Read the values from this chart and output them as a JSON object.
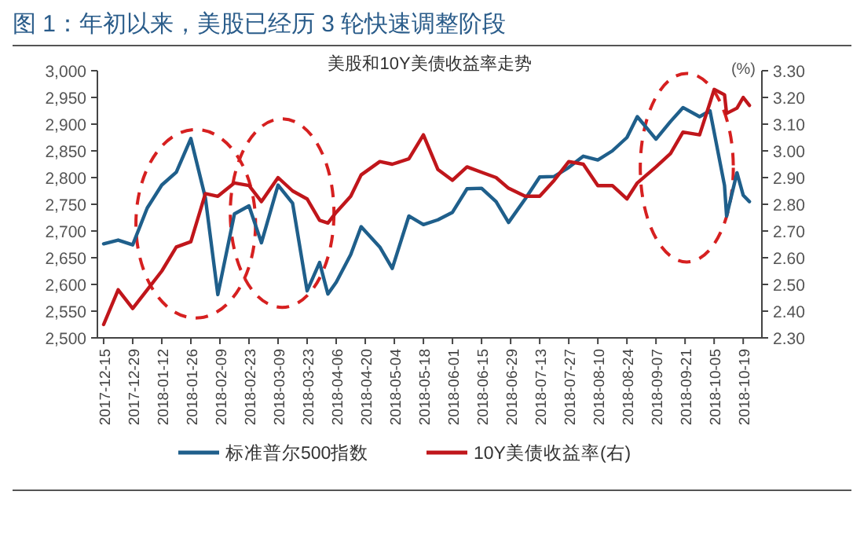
{
  "chart_data": {
    "type": "line",
    "title": "图 1：年初以来，美股已经历 3 轮快速调整阶段",
    "subtitle": "美股和10Y美债收益率走势",
    "y2label": "(%)",
    "x": [
      "2017-12-15",
      "2017-12-22",
      "2017-12-29",
      "2018-01-05",
      "2018-01-12",
      "2018-01-19",
      "2018-01-26",
      "2018-02-02",
      "2018-02-08",
      "2018-02-16",
      "2018-02-23",
      "2018-03-01",
      "2018-03-09",
      "2018-03-16",
      "2018-03-23",
      "2018-03-29",
      "2018-04-02",
      "2018-04-06",
      "2018-04-13",
      "2018-04-18",
      "2018-04-27",
      "2018-05-03",
      "2018-05-11",
      "2018-05-18",
      "2018-05-25",
      "2018-06-01",
      "2018-06-08",
      "2018-06-15",
      "2018-06-22",
      "2018-06-28",
      "2018-07-06",
      "2018-07-13",
      "2018-07-20",
      "2018-07-27",
      "2018-08-03",
      "2018-08-10",
      "2018-08-17",
      "2018-08-24",
      "2018-08-29",
      "2018-09-07",
      "2018-09-14",
      "2018-09-20",
      "2018-09-28",
      "2018-10-03",
      "2018-10-05",
      "2018-10-10",
      "2018-10-11",
      "2018-10-16",
      "2018-10-19",
      "2018-10-22"
    ],
    "series": [
      {
        "name": "标准普尔500指数",
        "color": "#1f5f8b",
        "values": [
          2676,
          2683,
          2674,
          2743,
          2786,
          2810,
          2873,
          2762,
          2581,
          2732,
          2747,
          2678,
          2786,
          2752,
          2588,
          2641,
          2582,
          2604,
          2656,
          2708,
          2670,
          2630,
          2728,
          2712,
          2721,
          2735,
          2779,
          2780,
          2755,
          2716,
          2760,
          2801,
          2802,
          2819,
          2840,
          2833,
          2850,
          2875,
          2914,
          2872,
          2905,
          2931,
          2914,
          2925,
          2885,
          2785,
          2728,
          2809,
          2767,
          2755
        ]
      },
      {
        "name": "10Y美债收益率(右)",
        "color": "#c0161b",
        "axis": "y2",
        "values": [
          2.35,
          2.48,
          2.41,
          2.48,
          2.55,
          2.64,
          2.66,
          2.84,
          2.83,
          2.88,
          2.87,
          2.81,
          2.9,
          2.85,
          2.82,
          2.74,
          2.73,
          2.77,
          2.83,
          2.91,
          2.96,
          2.95,
          2.97,
          3.06,
          2.93,
          2.89,
          2.94,
          2.92,
          2.9,
          2.86,
          2.83,
          2.83,
          2.89,
          2.96,
          2.95,
          2.87,
          2.87,
          2.82,
          2.88,
          2.94,
          2.99,
          3.07,
          3.06,
          3.18,
          3.23,
          3.21,
          3.14,
          3.16,
          3.2,
          3.17
        ]
      }
    ],
    "xlim": [
      "2017-12-12",
      "2018-10-28"
    ],
    "xticks": [
      {
        "value": "2017-12-15",
        "label": "2017-12-15"
      },
      {
        "value": "2017-12-29",
        "label": "2017-12-29"
      },
      {
        "value": "2018-01-12",
        "label": "2018-01-12"
      },
      {
        "value": "2018-01-26",
        "label": "2018-01-26"
      },
      {
        "value": "2018-02-09",
        "label": "2018-02-09"
      },
      {
        "value": "2018-02-23",
        "label": "2018-02-23"
      },
      {
        "value": "2018-03-09",
        "label": "2018-03-09"
      },
      {
        "value": "2018-03-23",
        "label": "2018-03-23"
      },
      {
        "value": "2018-04-06",
        "label": "2018-04-06"
      },
      {
        "value": "2018-04-20",
        "label": "2018-04-20"
      },
      {
        "value": "2018-05-04",
        "label": "2018-05-04"
      },
      {
        "value": "2018-05-18",
        "label": "2018-05-18"
      },
      {
        "value": "2018-06-01",
        "label": "2018-06-01"
      },
      {
        "value": "2018-06-15",
        "label": "2018-06-15"
      },
      {
        "value": "2018-06-29",
        "label": "2018-06-29"
      },
      {
        "value": "2018-07-13",
        "label": "2018-07-13"
      },
      {
        "value": "2018-07-27",
        "label": "2018-07-27"
      },
      {
        "value": "2018-08-10",
        "label": "2018-08-10"
      },
      {
        "value": "2018-08-24",
        "label": "2018-08-24"
      },
      {
        "value": "2018-09-07",
        "label": "2018-09-07"
      },
      {
        "value": "2018-09-21",
        "label": "2018-09-21"
      },
      {
        "value": "2018-10-05",
        "label": "2018-10-05"
      },
      {
        "value": "2018-10-19",
        "label": "2018-10-19"
      }
    ],
    "ylim": [
      2500,
      3000
    ],
    "yticks": [
      {
        "value": 2500,
        "label": "2,500"
      },
      {
        "value": 2550,
        "label": "2,550"
      },
      {
        "value": 2600,
        "label": "2,600"
      },
      {
        "value": 2650,
        "label": "2,650"
      },
      {
        "value": 2700,
        "label": "2,700"
      },
      {
        "value": 2750,
        "label": "2,750"
      },
      {
        "value": 2800,
        "label": "2,800"
      },
      {
        "value": 2850,
        "label": "2,850"
      },
      {
        "value": 2900,
        "label": "2,900"
      },
      {
        "value": 2950,
        "label": "2,950"
      },
      {
        "value": 3000,
        "label": "3,000"
      }
    ],
    "y2lim": [
      2.3,
      3.3
    ],
    "y2ticks": [
      {
        "value": 2.3,
        "label": "2.30"
      },
      {
        "value": 2.4,
        "label": "2.40"
      },
      {
        "value": 2.5,
        "label": "2.50"
      },
      {
        "value": 2.6,
        "label": "2.60"
      },
      {
        "value": 2.7,
        "label": "2.70"
      },
      {
        "value": 2.8,
        "label": "2.80"
      },
      {
        "value": 2.9,
        "label": "2.90"
      },
      {
        "value": 3.0,
        "label": "3.00"
      },
      {
        "value": 3.1,
        "label": "3.10"
      },
      {
        "value": 3.2,
        "label": "3.20"
      },
      {
        "value": 3.3,
        "label": "3.30"
      }
    ],
    "grid": false,
    "legend": "bottom",
    "marker": "none",
    "line_style": "solid"
  }
}
